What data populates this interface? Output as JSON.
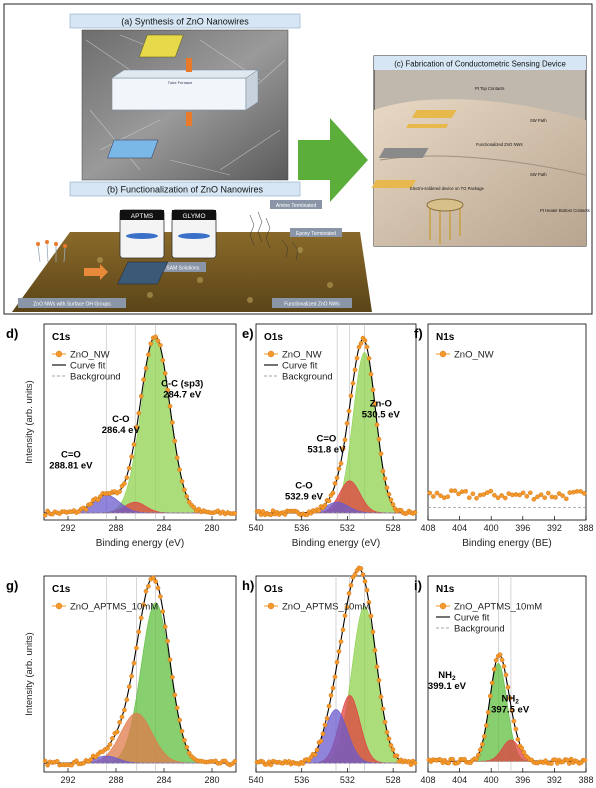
{
  "schematic": {
    "title_a": "(a)  Synthesis of ZnO Nanowires",
    "title_b": "(b)  Functionalization of ZnO Nanowires",
    "title_c": "(c) Fabrication of Conductometric Sensing Device",
    "jar1": "APTMS",
    "jar2": "GLYMO",
    "dipping": "Dipping in SAM Solutions",
    "amine": "Amine Terminated",
    "epoxy": "Epoxy Terminated",
    "zno_oh": "ZnO NWs with Surface OH Groups",
    "func_nws": "Functionalized ZnO NWs",
    "furnace": "Tube Furnace",
    "c_labels": [
      "Pt Top Contacts",
      "SW Path",
      "Functionalized ZnO NWs",
      "SW Path",
      "Electro-soldered device on TO Package",
      "Pt Heater Bottom Contacts"
    ]
  },
  "axis_ticks": {
    "c1s": [
      "292",
      "288",
      "284",
      "280"
    ],
    "o1s": [
      "540",
      "536",
      "532",
      "528"
    ],
    "n1s": [
      "408",
      "404",
      "400",
      "396",
      "392",
      "388"
    ]
  },
  "chart_data": [
    {
      "panel": "d)",
      "title": "C1s",
      "type": "scatter+line",
      "xlabel": "Binding energy (eV)",
      "ylabel": "Intensity (arb. units)",
      "xlim": [
        294,
        278
      ],
      "ylim": [
        0,
        1.1
      ],
      "legend": [
        "ZnO_NW",
        "Curve fit",
        "Background"
      ],
      "annotations": [
        {
          "name": "C-C (sp3)",
          "value": "284.7 eV"
        },
        {
          "name": "C-O",
          "value": "286.4 eV"
        },
        {
          "name": "C=O",
          "value": "288.81 eV"
        }
      ],
      "background": 0.04,
      "components": [
        {
          "center": 284.7,
          "amp": 0.98,
          "width": 1.2,
          "color": "#8fd14f"
        },
        {
          "center": 286.4,
          "amp": 0.06,
          "width": 0.9,
          "color": "#e04040"
        },
        {
          "center": 288.81,
          "amp": 0.1,
          "width": 1.1,
          "color": "#6a5acd"
        }
      ]
    },
    {
      "panel": "e)",
      "title": "O1s",
      "type": "scatter+line",
      "xlabel": "Binding energy (eV)",
      "ylabel": "",
      "xlim": [
        540,
        526
      ],
      "ylim": [
        0,
        1.1
      ],
      "legend": [
        "ZnO_NW",
        "Curve fit",
        "Background"
      ],
      "annotations": [
        {
          "name": "Zn-O",
          "value": "530.5 eV"
        },
        {
          "name": "C=O",
          "value": "531.8 eV"
        },
        {
          "name": "C-O",
          "value": "532.9 eV"
        }
      ],
      "background": 0.04,
      "components": [
        {
          "center": 530.5,
          "amp": 0.9,
          "width": 1.0,
          "color": "#8fd14f"
        },
        {
          "center": 531.8,
          "amp": 0.18,
          "width": 0.9,
          "color": "#e04040"
        },
        {
          "center": 532.9,
          "amp": 0.06,
          "width": 1.0,
          "color": "#6a5acd"
        }
      ]
    },
    {
      "panel": "f)",
      "title": "N1s",
      "type": "scatter",
      "xlabel": "Binding energy (BE)",
      "ylabel": "",
      "xlim": [
        408,
        388
      ],
      "ylim": [
        0,
        1.1
      ],
      "legend": [
        "ZnO_NW"
      ],
      "annotations": [],
      "background": 0.07,
      "components": []
    },
    {
      "panel": "g)",
      "title": "C1s",
      "type": "scatter+line",
      "xlabel": "",
      "ylabel": "Intensity (arb. units)",
      "xlim": [
        294,
        278
      ],
      "ylim": [
        0,
        1.1
      ],
      "legend": [
        "ZnO_APTMS_10mM"
      ],
      "annotations": [],
      "background": 0.05,
      "components": [
        {
          "center": 284.7,
          "amp": 0.9,
          "width": 1.2,
          "color": "#5fbf3f"
        },
        {
          "center": 286.3,
          "amp": 0.28,
          "width": 1.3,
          "color": "#e07a4a"
        },
        {
          "center": 288.8,
          "amp": 0.04,
          "width": 1.0,
          "color": "#6a5acd"
        }
      ]
    },
    {
      "panel": "h)",
      "title": "O1s",
      "type": "scatter+line",
      "xlabel": "",
      "ylabel": "",
      "xlim": [
        540,
        526
      ],
      "ylim": [
        0,
        1.1
      ],
      "legend": [
        "ZnO_APTMS_10mM"
      ],
      "annotations": [],
      "background": 0.05,
      "components": [
        {
          "center": 530.5,
          "amp": 0.88,
          "width": 1.1,
          "color": "#8fd14f"
        },
        {
          "center": 531.8,
          "amp": 0.38,
          "width": 0.9,
          "color": "#e04040"
        },
        {
          "center": 533.0,
          "amp": 0.3,
          "width": 1.0,
          "color": "#6a5acd"
        }
      ]
    },
    {
      "panel": "i)",
      "title": "N1s",
      "type": "scatter+line",
      "xlabel": "",
      "ylabel": "",
      "xlim": [
        408,
        388
      ],
      "ylim": [
        0,
        1.1
      ],
      "legend": [
        "ZnO_APTMS_10mM",
        "Curve fit",
        "Background"
      ],
      "annotations": [
        {
          "name": "NH2",
          "value": "399.1 eV"
        },
        {
          "name": "NH2",
          "value": "397.5 eV"
        }
      ],
      "background": 0.06,
      "components": [
        {
          "center": 399.1,
          "amp": 0.55,
          "width": 1.1,
          "color": "#5fbf3f"
        },
        {
          "center": 397.5,
          "amp": 0.12,
          "width": 1.1,
          "color": "#e04040"
        }
      ]
    }
  ]
}
